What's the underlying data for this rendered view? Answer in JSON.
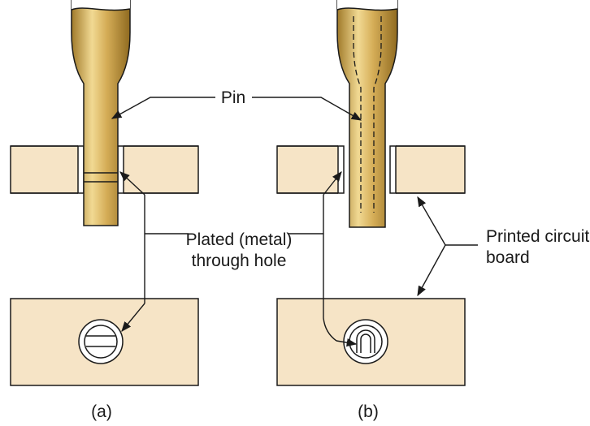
{
  "labels": {
    "pin": "Pin",
    "plated_line1": "Plated (metal)",
    "plated_line2": "through hole",
    "pcb_line1": "Printed circuit",
    "pcb_line2": "board"
  },
  "captions": {
    "a": "(a)",
    "b": "(b)"
  },
  "colors": {
    "board": "#f6e4c6",
    "pin_mid": "#c8a048",
    "pin_dark": "#9c7626",
    "pin_light": "#f1d993",
    "outline": "#1a1a1a"
  }
}
